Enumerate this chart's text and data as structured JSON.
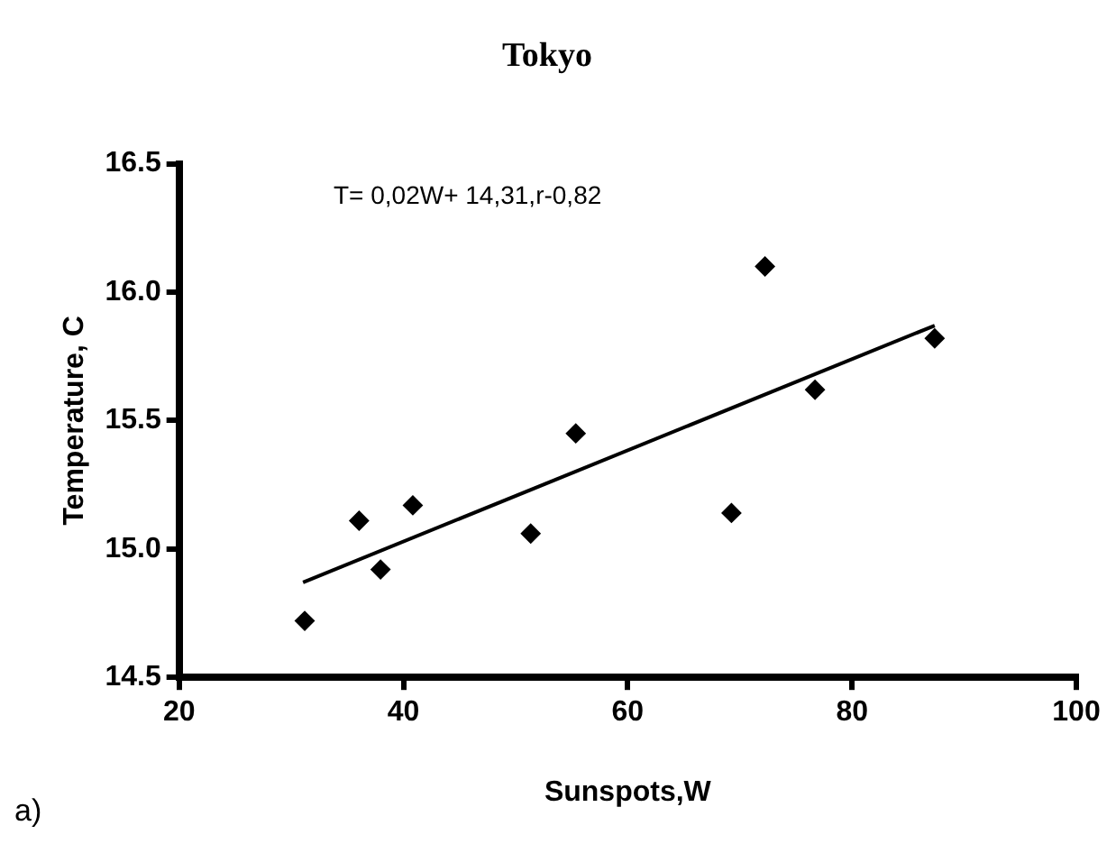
{
  "chart_data": {
    "type": "scatter",
    "title": "Tokyo",
    "xlabel": "Sunspots,W",
    "ylabel": "Temperature, C",
    "series": [
      {
        "color": "#000000",
        "x": [
          31.2,
          36.05,
          37.96,
          40.84,
          51.35,
          55.37,
          69.25,
          72.24,
          76.7,
          87.37
        ],
        "values": [
          14.72,
          15.11,
          14.92,
          15.17,
          15.06,
          15.45,
          15.14,
          16.1,
          15.62,
          15.82
        ]
      },
      {
        "type": "line",
        "marker": "none",
        "color": "#000000",
        "x": [
          31.05,
          87.37
        ],
        "values": [
          14.87,
          15.87
        ]
      }
    ],
    "xlim": [
      20,
      100
    ],
    "xticks": [
      20,
      40,
      60,
      80,
      100
    ],
    "ylim": [
      14.5,
      16.5
    ],
    "yticks": [
      {
        "value": 14.5,
        "label": "14.5"
      },
      {
        "value": 15,
        "label": "15.0"
      },
      {
        "value": 15.5,
        "label": "15.5"
      },
      {
        "value": 16,
        "label": "16.0"
      },
      {
        "value": 16.5,
        "label": "16.5"
      }
    ],
    "annotations": [
      "T= 0,02W+ 14,31,r-0,82",
      "a)"
    ],
    "grid": false,
    "legend": false,
    "marker": "diamond",
    "line_style": "solid"
  }
}
